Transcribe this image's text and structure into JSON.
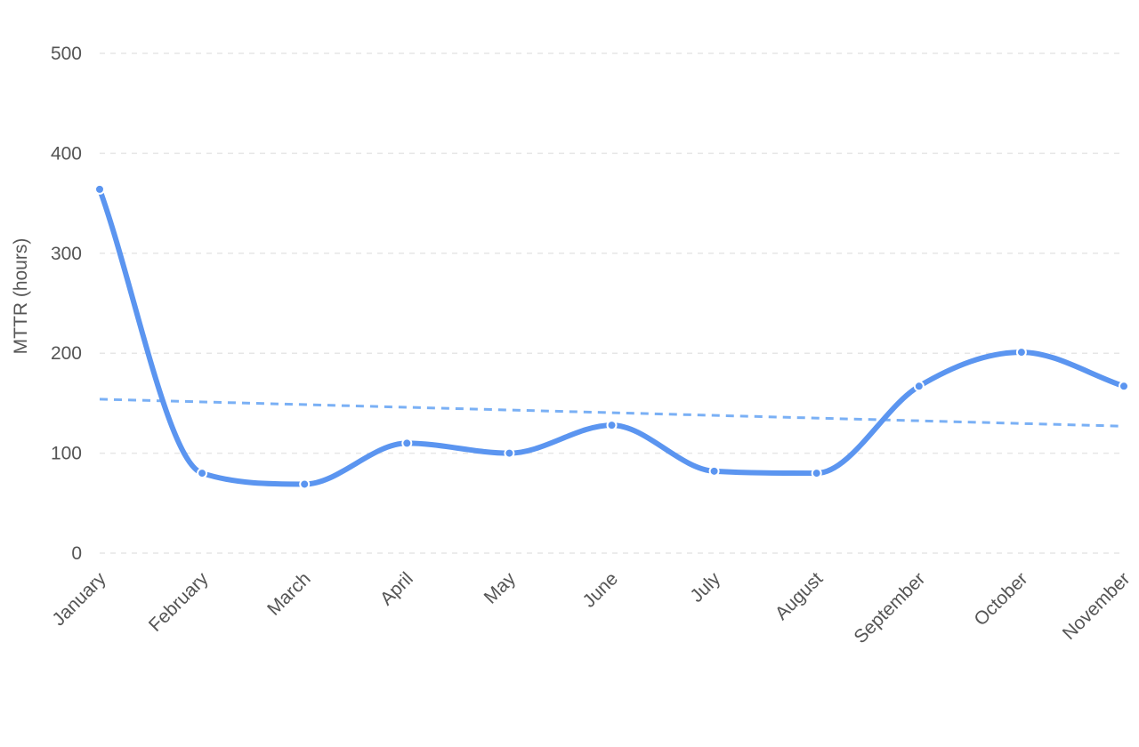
{
  "chart_data": {
    "type": "line",
    "title": "",
    "xlabel": "",
    "ylabel": "MTTR (hours)",
    "categories": [
      "January",
      "February",
      "March",
      "April",
      "May",
      "June",
      "July",
      "August",
      "September",
      "October",
      "November"
    ],
    "series": [
      {
        "values": [
          364,
          80,
          69,
          110,
          100,
          128,
          82,
          80,
          167,
          201,
          167
        ],
        "color": "#5b95f0",
        "smooth": true,
        "markers": true
      }
    ],
    "trendline": {
      "values": [
        154,
        127
      ],
      "color": "#7ab0f5",
      "style": "dashed"
    },
    "yticks": [
      0,
      100,
      200,
      300,
      400,
      500
    ],
    "ylim": [
      0,
      500
    ],
    "grid": true,
    "grid_style": "dashed",
    "legend": "none"
  }
}
